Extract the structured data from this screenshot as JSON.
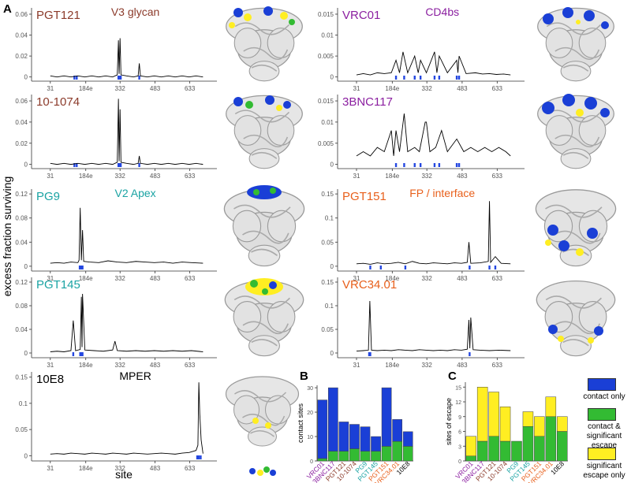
{
  "y_label": "excess fraction surviving",
  "x_label": "site",
  "chart_data": [
    {
      "type": "line",
      "panel": "A",
      "title": "V3 glycan",
      "title_color": "#8b3a2a",
      "name_color": "#8b3a2a",
      "xlim": [
        -50,
        750
      ],
      "xticks": [
        31,
        {
          "value": 184,
          "label": "184e"
        },
        332,
        483,
        633
      ],
      "ylim": [
        -0.004,
        0.066
      ],
      "yticks": [
        0,
        0.02,
        0.04,
        0.06
      ],
      "series": [
        {
          "name": "PGT121",
          "color": "#000000",
          "x": [
            31,
            60,
            90,
            120,
            150,
            180,
            210,
            240,
            270,
            300,
            320,
            325,
            328,
            332,
            336,
            360,
            390,
            410,
            415,
            420,
            450,
            480,
            510,
            540,
            570,
            600,
            630,
            660,
            690
          ],
          "values": [
            0.001,
            0,
            0.001,
            0,
            0.001,
            0,
            0.001,
            0,
            0.001,
            0,
            0.002,
            0.035,
            0.003,
            0.037,
            0.002,
            0.001,
            0,
            0.001,
            0.013,
            0.001,
            0,
            0.001,
            0,
            0.001,
            0,
            0.001,
            0,
            0.001,
            0
          ]
        }
      ],
      "contact_color": "#2447e0",
      "contact_sites": [
        135,
        145,
        325,
        330,
        335,
        415
      ]
    },
    {
      "type": "line",
      "title": "CD4bs",
      "title_color": "#8b1fa0",
      "name_color": "#8b1fa0",
      "xlim": [
        -50,
        750
      ],
      "xticks": [
        31,
        {
          "value": 184,
          "label": "184e"
        },
        332,
        483,
        633
      ],
      "ylim": [
        -0.001,
        0.0165
      ],
      "yticks": [
        0,
        0.005,
        0.01,
        0.015
      ],
      "series": [
        {
          "name": "VRC01",
          "color": "#000000",
          "x": [
            31,
            60,
            90,
            120,
            150,
            180,
            200,
            215,
            230,
            250,
            280,
            295,
            305,
            330,
            365,
            375,
            385,
            420,
            460,
            465,
            470,
            500,
            540,
            570,
            600,
            630,
            660,
            690
          ],
          "values": [
            0.0005,
            0.0008,
            0.0005,
            0.001,
            0.0008,
            0.001,
            0.004,
            0.001,
            0.006,
            0.001,
            0.005,
            0.001,
            0.004,
            0.001,
            0.006,
            0.001,
            0.005,
            0.001,
            0.004,
            0.001,
            0.005,
            0.0008,
            0.001,
            0.0007,
            0.0008,
            0.0006,
            0.0007,
            0.0005
          ]
        }
      ],
      "contact_color": "#2447e0",
      "contact_sites": [
        200,
        235,
        280,
        305,
        365,
        385,
        460,
        470
      ]
    },
    {
      "type": "line",
      "name_color": "#8b3a2a",
      "xlim": [
        -50,
        750
      ],
      "xticks": [
        31,
        {
          "value": 184,
          "label": "184e"
        },
        332,
        483,
        633
      ],
      "ylim": [
        -0.004,
        0.066
      ],
      "yticks": [
        0,
        0.02,
        0.04,
        0.06
      ],
      "series": [
        {
          "name": "10-1074",
          "color": "#000000",
          "x": [
            31,
            60,
            90,
            120,
            150,
            180,
            210,
            240,
            270,
            300,
            320,
            325,
            328,
            332,
            336,
            360,
            390,
            410,
            415,
            420,
            450,
            480,
            510,
            540,
            570,
            600,
            630,
            660,
            690
          ],
          "values": [
            0.001,
            0,
            0.001,
            0,
            0.001,
            0,
            0.001,
            0,
            0.001,
            0,
            0.002,
            0.062,
            0.003,
            0.052,
            0.002,
            0.001,
            0,
            0.001,
            0.008,
            0.001,
            0,
            0.001,
            0,
            0.001,
            0,
            0.001,
            0,
            0.001,
            0
          ]
        }
      ],
      "contact_color": "#2447e0",
      "contact_sites": [
        135,
        145,
        325,
        330,
        335,
        415
      ]
    },
    {
      "type": "line",
      "name_color": "#8b1fa0",
      "xlim": [
        -50,
        750
      ],
      "xticks": [
        31,
        {
          "value": 184,
          "label": "184e"
        },
        332,
        483,
        633
      ],
      "ylim": [
        -0.001,
        0.0165
      ],
      "yticks": [
        0,
        0.005,
        0.01,
        0.015
      ],
      "series": [
        {
          "name": "3BNC117",
          "color": "#000000",
          "x": [
            31,
            60,
            90,
            120,
            150,
            180,
            190,
            200,
            215,
            235,
            250,
            280,
            300,
            325,
            330,
            345,
            370,
            395,
            420,
            460,
            490,
            520,
            550,
            580,
            610,
            640,
            670,
            690
          ],
          "values": [
            0.002,
            0.003,
            0.002,
            0.004,
            0.003,
            0.008,
            0.002,
            0.008,
            0.003,
            0.012,
            0.003,
            0.004,
            0.003,
            0.01,
            0.01,
            0.003,
            0.004,
            0.008,
            0.003,
            0.006,
            0.003,
            0.004,
            0.003,
            0.004,
            0.003,
            0.004,
            0.003,
            0.002
          ]
        }
      ],
      "contact_color": "#2447e0",
      "contact_sites": [
        200,
        235,
        280,
        305,
        365,
        385,
        460,
        470
      ]
    },
    {
      "type": "line",
      "title": "V2 Apex",
      "title_color": "#1aa3a3",
      "name_color": "#1aa3a3",
      "xlim": [
        -50,
        750
      ],
      "xticks": [
        31,
        {
          "value": 184,
          "label": "184e"
        },
        332,
        483,
        633
      ],
      "ylim": [
        -0.008,
        0.128
      ],
      "yticks": [
        0,
        0.04,
        0.08,
        0.12
      ],
      "series": [
        {
          "name": "PG9",
          "color": "#000000",
          "x": [
            31,
            60,
            90,
            120,
            150,
            155,
            160,
            165,
            170,
            175,
            200,
            240,
            280,
            320,
            360,
            400,
            440,
            480,
            520,
            560,
            600,
            640,
            690
          ],
          "values": [
            0.005,
            0.006,
            0.005,
            0.007,
            0.006,
            0.01,
            0.097,
            0.01,
            0.06,
            0.008,
            0.007,
            0.006,
            0.009,
            0.007,
            0.006,
            0.008,
            0.007,
            0.006,
            0.007,
            0.005,
            0.007,
            0.006,
            0.005
          ]
        }
      ],
      "contact_color": "#2447e0",
      "contact_sites": [
        158,
        160,
        165,
        170
      ]
    },
    {
      "type": "line",
      "title": "FP / interface",
      "title_color": "#e8601c",
      "name_color": "#e8601c",
      "xlim": [
        -50,
        750
      ],
      "xticks": [
        31,
        {
          "value": 184,
          "label": "184e"
        },
        332,
        483,
        633
      ],
      "ylim": [
        -0.01,
        0.16
      ],
      "yticks": [
        0,
        0.05,
        0.1,
        0.15
      ],
      "series": [
        {
          "name": "PGT151",
          "color": "#000000",
          "x": [
            31,
            60,
            90,
            120,
            150,
            180,
            210,
            240,
            270,
            300,
            330,
            360,
            390,
            420,
            450,
            480,
            505,
            512,
            520,
            560,
            595,
            600,
            605,
            625,
            650,
            690
          ],
          "values": [
            0.005,
            0.006,
            0.004,
            0.007,
            0.005,
            0.006,
            0.008,
            0.005,
            0.01,
            0.006,
            0.005,
            0.007,
            0.006,
            0.005,
            0.007,
            0.006,
            0.008,
            0.05,
            0.006,
            0.007,
            0.01,
            0.135,
            0.008,
            0.02,
            0.006,
            0.005
          ]
        }
      ],
      "contact_color": "#2447e0",
      "contact_sites": [
        90,
        135,
        240,
        515,
        600,
        625
      ]
    },
    {
      "type": "line",
      "name_color": "#1aa3a3",
      "xlim": [
        -50,
        750
      ],
      "xticks": [
        31,
        {
          "value": 184,
          "label": "184e"
        },
        332,
        483,
        633
      ],
      "ylim": [
        -0.008,
        0.128
      ],
      "yticks": [
        0,
        0.04,
        0.08,
        0.12
      ],
      "series": [
        {
          "name": "PGT145",
          "color": "#000000",
          "x": [
            31,
            60,
            90,
            120,
            130,
            140,
            160,
            165,
            168,
            170,
            180,
            220,
            260,
            300,
            310,
            320,
            360,
            400,
            440,
            480,
            520,
            560,
            600,
            640,
            690
          ],
          "values": [
            0.002,
            0.003,
            0.002,
            0.004,
            0.055,
            0.004,
            0.006,
            0.095,
            0.01,
            0.1,
            0.005,
            0.004,
            0.003,
            0.005,
            0.02,
            0.004,
            0.003,
            0.004,
            0.003,
            0.004,
            0.003,
            0.004,
            0.003,
            0.004,
            0.002
          ]
        }
      ],
      "contact_color": "#2447e0",
      "contact_sites": [
        130,
        160,
        165,
        170
      ]
    },
    {
      "type": "line",
      "name_color": "#e8601c",
      "xlim": [
        -50,
        750
      ],
      "xticks": [
        31,
        {
          "value": 184,
          "label": "184e"
        },
        332,
        483,
        633
      ],
      "ylim": [
        -0.01,
        0.16
      ],
      "yticks": [
        0,
        0.05,
        0.1,
        0.15
      ],
      "series": [
        {
          "name": "VRC34.01",
          "color": "#000000",
          "x": [
            31,
            60,
            82,
            88,
            95,
            120,
            150,
            180,
            210,
            240,
            270,
            300,
            330,
            360,
            390,
            420,
            450,
            480,
            505,
            512,
            516,
            520,
            530,
            560,
            600,
            640,
            690
          ],
          "values": [
            0.004,
            0.005,
            0.006,
            0.11,
            0.006,
            0.005,
            0.006,
            0.005,
            0.007,
            0.006,
            0.005,
            0.007,
            0.006,
            0.005,
            0.006,
            0.005,
            0.007,
            0.006,
            0.008,
            0.07,
            0.01,
            0.075,
            0.007,
            0.006,
            0.005,
            0.006,
            0.005
          ]
        }
      ],
      "contact_color": "#2447e0",
      "contact_sites": [
        85,
        90,
        515
      ]
    },
    {
      "type": "line",
      "title": "MPER",
      "title_color": "#000000",
      "name_color": "#000000",
      "xlim": [
        -50,
        750
      ],
      "xticks": [
        31,
        {
          "value": 184,
          "label": "184e"
        },
        332,
        483,
        633
      ],
      "ylim": [
        -0.01,
        0.16
      ],
      "yticks": [
        0,
        0.05,
        0.1,
        0.15
      ],
      "series": [
        {
          "name": "10E8",
          "color": "#000000",
          "x": [
            31,
            60,
            90,
            120,
            150,
            180,
            210,
            240,
            270,
            300,
            330,
            360,
            390,
            420,
            450,
            480,
            510,
            540,
            570,
            600,
            630,
            660,
            668,
            672,
            676,
            682,
            690
          ],
          "values": [
            0.003,
            0.004,
            0.003,
            0.005,
            0.004,
            0.003,
            0.005,
            0.004,
            0.003,
            0.005,
            0.004,
            0.003,
            0.005,
            0.004,
            0.003,
            0.004,
            0.005,
            0.004,
            0.003,
            0.005,
            0.006,
            0.01,
            0.02,
            0.14,
            0.08,
            0.03,
            0.004
          ]
        }
      ],
      "contact_color": "#2447e0",
      "contact_sites": [
        665,
        672,
        680
      ]
    },
    {
      "type": "bar",
      "panel": "B",
      "y_label": "contact sites",
      "categories": [
        "VRC01",
        "3BNC117",
        "PGT121",
        "10-1074",
        "PG9",
        "PGT145",
        "PGT151",
        "VRC34.01",
        "10E8"
      ],
      "category_colors": [
        "#8b1fa0",
        "#8b1fa0",
        "#8b3a2a",
        "#8b3a2a",
        "#1aa3a3",
        "#1aa3a3",
        "#e8601c",
        "#e8601c",
        "#000000"
      ],
      "ylim": [
        0,
        31
      ],
      "yticks": [
        0,
        10,
        20,
        30
      ],
      "series": [
        {
          "name": "contact & significant escape",
          "color": "#33bb33",
          "values": [
            1,
            4,
            4,
            5,
            4,
            4,
            6,
            8,
            6
          ]
        },
        {
          "name": "contact only",
          "color": "#1a3fd6",
          "values": [
            24,
            26,
            12,
            10,
            10,
            6,
            24,
            9,
            6
          ]
        }
      ]
    },
    {
      "type": "bar",
      "panel": "C",
      "y_label": "sites of escape",
      "categories": [
        "VRC01",
        "3BNC117",
        "PGT121",
        "10-1074",
        "PG9",
        "PGT145",
        "PGT151",
        "VRC34.01",
        "10E8"
      ],
      "category_colors": [
        "#8b1fa0",
        "#8b1fa0",
        "#8b3a2a",
        "#8b3a2a",
        "#1aa3a3",
        "#1aa3a3",
        "#e8601c",
        "#e8601c",
        "#000000"
      ],
      "ylim": [
        0,
        16
      ],
      "yticks": [
        0,
        3,
        6,
        9,
        12,
        15
      ],
      "series": [
        {
          "color": "#33bb33",
          "values": [
            1,
            4,
            5,
            4,
            4,
            7,
            5,
            9,
            6
          ]
        },
        {
          "name": "significant escape only",
          "color": "#ffee22",
          "values": [
            4,
            11,
            9,
            7,
            0,
            3,
            4,
            4,
            3
          ]
        }
      ]
    }
  ]
}
